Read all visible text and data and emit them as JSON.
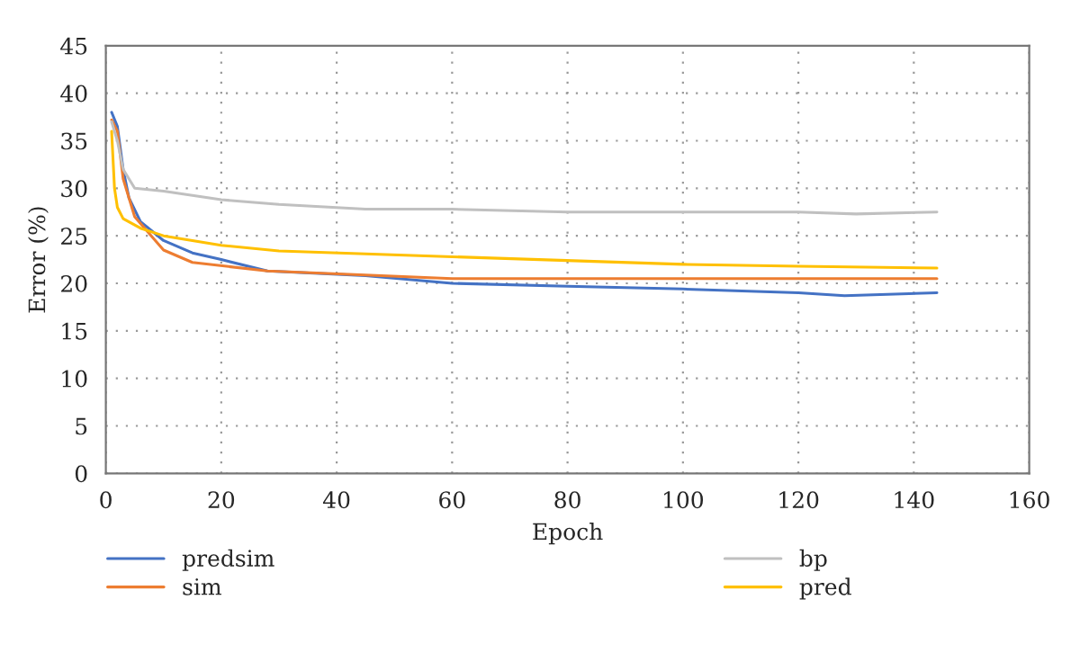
{
  "chart_data": {
    "type": "line",
    "xlabel": "Epoch",
    "ylabel": "Error (%)",
    "xlim": [
      0,
      160
    ],
    "xticks": [
      0,
      20,
      40,
      60,
      80,
      100,
      120,
      140,
      160
    ],
    "ylim": [
      0,
      45
    ],
    "yticks": [
      0,
      5,
      10,
      15,
      20,
      25,
      30,
      35,
      40,
      45
    ],
    "grid": true,
    "legend": "bottom",
    "line_style": "solid",
    "marker": "none",
    "series": [
      {
        "name": "predsim",
        "color": "#4472c4",
        "x": [
          1,
          2,
          3,
          4,
          6,
          10,
          15,
          20,
          28,
          45,
          60,
          80,
          100,
          120,
          128,
          144
        ],
        "values": [
          38,
          36.5,
          32,
          29,
          26.5,
          24.5,
          23.2,
          22.5,
          21.3,
          20.8,
          20,
          19.7,
          19.4,
          19,
          18.7,
          19
        ]
      },
      {
        "name": "sim",
        "color": "#ed7d31",
        "x": [
          1,
          2,
          3,
          5,
          10,
          15,
          28,
          60,
          100,
          144
        ],
        "values": [
          37.2,
          36,
          31,
          27,
          23.5,
          22.2,
          21.3,
          20.5,
          20.5,
          20.5
        ]
      },
      {
        "name": "bp",
        "color": "#c0c0c0",
        "x": [
          1,
          2,
          3,
          5,
          10,
          20,
          30,
          45,
          60,
          80,
          120,
          130,
          144
        ],
        "values": [
          37,
          35,
          32,
          30,
          29.7,
          28.8,
          28.3,
          27.8,
          27.8,
          27.5,
          27.5,
          27.3,
          27.5
        ]
      },
      {
        "name": "pred",
        "color": "#ffc000",
        "x": [
          1,
          1.5,
          2,
          3,
          6,
          10,
          20,
          30,
          60,
          100,
          120,
          144
        ],
        "values": [
          36,
          30,
          28,
          26.8,
          25.8,
          25,
          24,
          23.4,
          22.8,
          22,
          21.8,
          21.6
        ]
      }
    ]
  }
}
